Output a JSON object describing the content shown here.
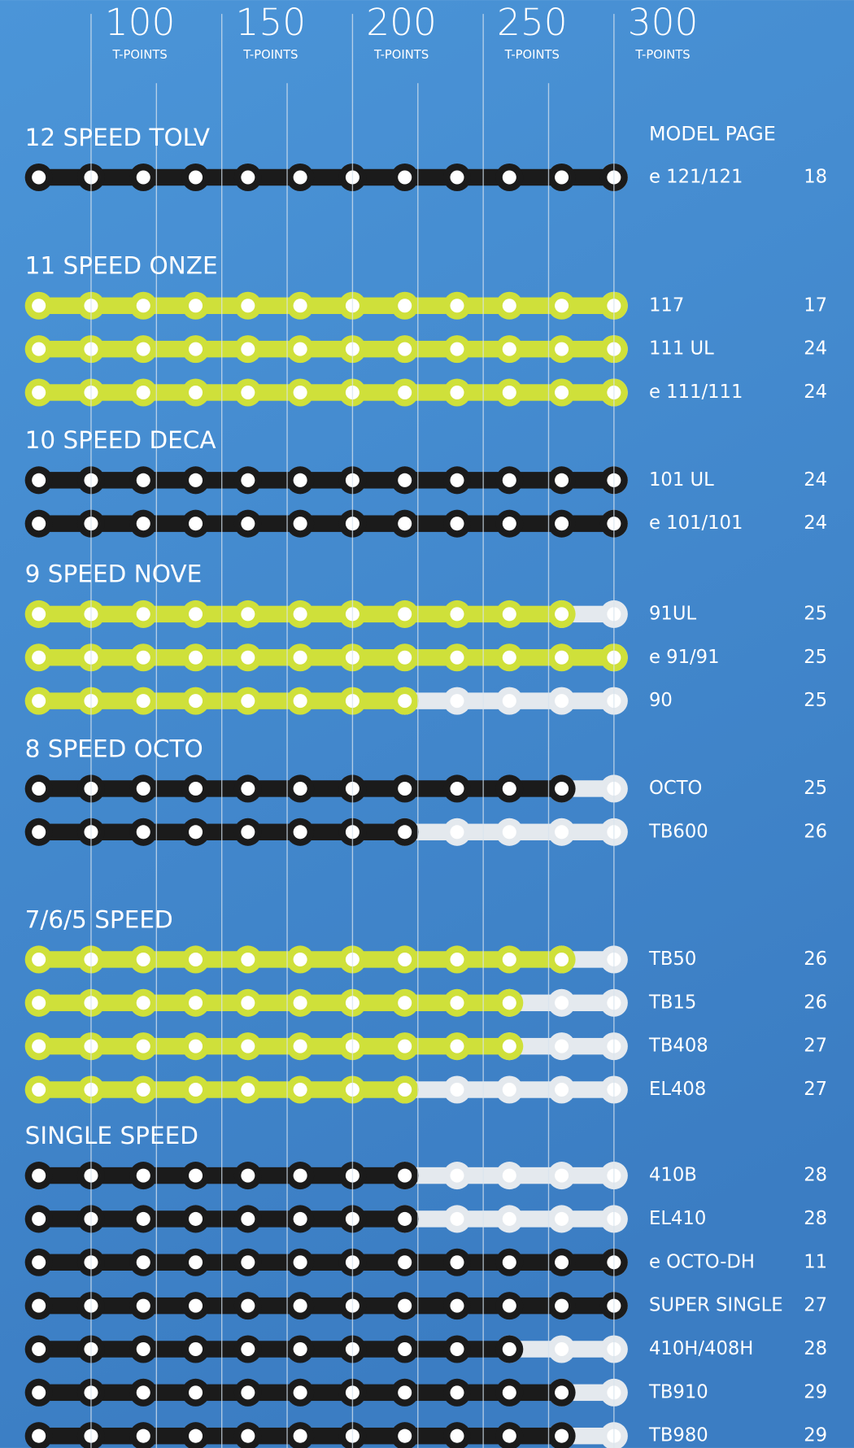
{
  "chart_data": {
    "type": "chain-bar",
    "xlim": [
      80,
      300
    ],
    "xticks": [
      100,
      150,
      200,
      250,
      300
    ],
    "minor_gridlines": [
      125,
      175,
      225,
      275
    ],
    "x_unit": "T-POINTS",
    "column_header": "MODEL PAGE",
    "rest_color": "#e4e9ee",
    "groups": [
      {
        "name": "12 SPEED TOLV",
        "color": "#1b1b1b",
        "items": [
          {
            "model": "e 121/121",
            "value": 300,
            "page": 18
          }
        ]
      },
      {
        "name": "11 SPEED ONZE",
        "color": "#cfe03a",
        "items": [
          {
            "model": "117",
            "value": 300,
            "page": 17
          },
          {
            "model": "111 UL",
            "value": 300,
            "page": 24
          },
          {
            "model": "e 111/111",
            "value": 300,
            "page": 24
          }
        ]
      },
      {
        "name": "10 SPEED DECA",
        "color": "#1b1b1b",
        "items": [
          {
            "model": "101 UL",
            "value": 300,
            "page": 24
          },
          {
            "model": "e 101/101",
            "value": 300,
            "page": 24
          }
        ]
      },
      {
        "name": "9 SPEED NOVE",
        "color": "#cfe03a",
        "items": [
          {
            "model": "91UL",
            "value": 280,
            "page": 25
          },
          {
            "model": "e 91/91",
            "value": 300,
            "page": 25
          },
          {
            "model": "90",
            "value": 220,
            "page": 25
          }
        ]
      },
      {
        "name": "8 SPEED OCTO",
        "color": "#1b1b1b",
        "items": [
          {
            "model": "OCTO",
            "value": 280,
            "page": 25
          },
          {
            "model": "TB600",
            "value": 220,
            "page": 26
          }
        ]
      },
      {
        "name": "7/6/5 SPEED",
        "color": "#cfe03a",
        "items": [
          {
            "model": "TB50",
            "value": 280,
            "page": 26
          },
          {
            "model": "TB15",
            "value": 260,
            "page": 26
          },
          {
            "model": "TB408",
            "value": 260,
            "page": 27
          },
          {
            "model": "EL408",
            "value": 220,
            "page": 27
          }
        ]
      },
      {
        "name": "SINGLE SPEED",
        "color": "#1b1b1b",
        "items": [
          {
            "model": "410B",
            "value": 220,
            "page": 28
          },
          {
            "model": "EL410",
            "value": 220,
            "page": 28
          },
          {
            "model": "e OCTO-DH",
            "value": 300,
            "page": 11
          },
          {
            "model": "SUPER SINGLE",
            "value": 300,
            "page": 27
          },
          {
            "model": "410H/408H",
            "value": 260,
            "page": 28
          },
          {
            "model": "TB910",
            "value": 280,
            "page": 29
          },
          {
            "model": "TB980",
            "value": 280,
            "page": 29
          }
        ]
      }
    ]
  }
}
